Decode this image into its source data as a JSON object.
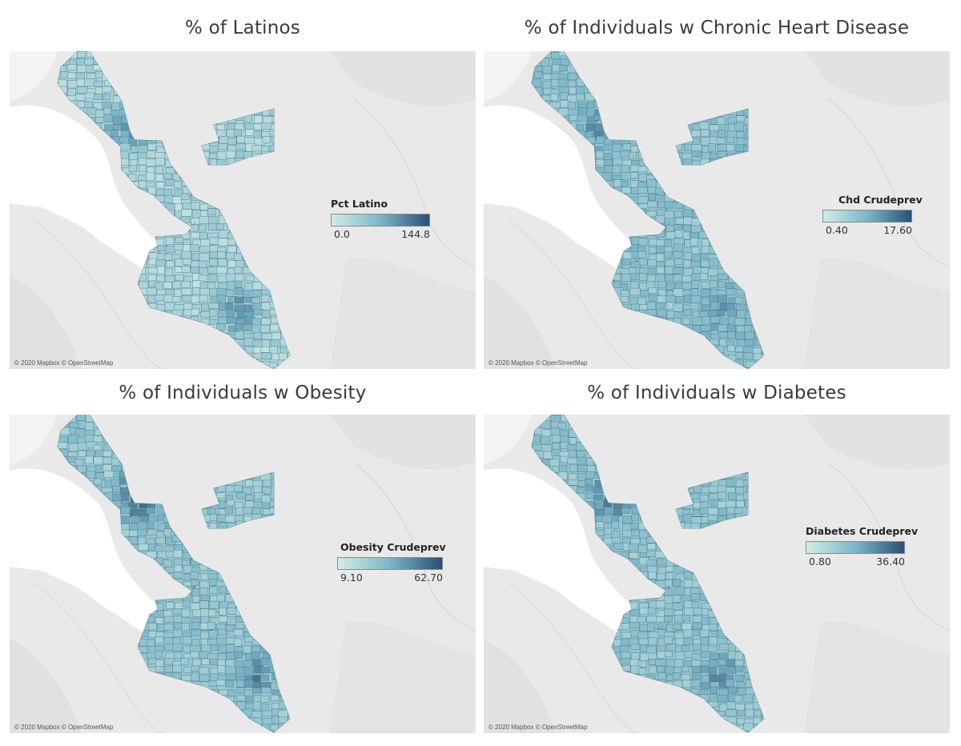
{
  "panels": [
    {
      "title": "% of Latinos",
      "legend_title": "Pct Latino",
      "legend_min": "0.0",
      "legend_max": "144.8",
      "attribution": "© 2020 Mapbox © OpenStreetMap",
      "scale_colors": [
        "#d3ece8",
        "#7bb6c8",
        "#2c4f77"
      ]
    },
    {
      "title": "% of Individuals w Chronic Heart Disease",
      "legend_title": "Chd Crudeprev",
      "legend_min": "0.40",
      "legend_max": "17.60",
      "attribution": "© 2020 Mapbox © OpenStreetMap",
      "scale_colors": [
        "#d3ece8",
        "#7bb6c8",
        "#2c4f77"
      ]
    },
    {
      "title": "% of Individuals w Obesity",
      "legend_title": "Obesity Crudeprev",
      "legend_min": "9.10",
      "legend_max": "62.70",
      "attribution": "© 2020 Mapbox © OpenStreetMap",
      "scale_colors": [
        "#d3ece8",
        "#7bb6c8",
        "#2c4f77"
      ]
    },
    {
      "title": "% of Individuals w Diabetes",
      "legend_title": "Diabetes Crudeprev",
      "legend_min": "0.80",
      "legend_max": "36.40",
      "attribution": "© 2020 Mapbox © OpenStreetMap",
      "scale_colors": [
        "#d3ece8",
        "#7bb6c8",
        "#2c4f77"
      ]
    }
  ]
}
